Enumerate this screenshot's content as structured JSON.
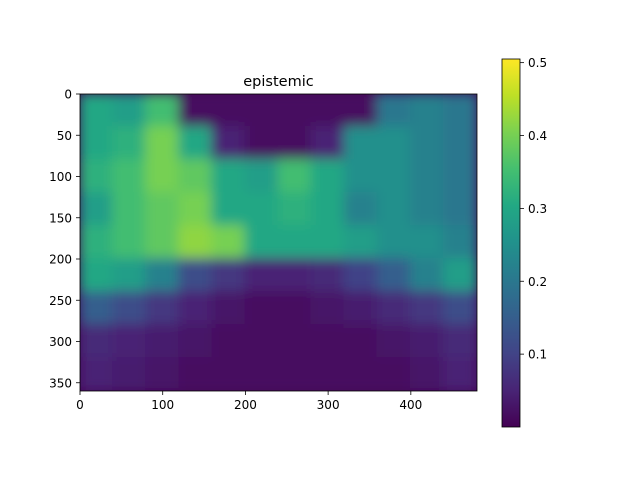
{
  "chart_data": {
    "type": "heatmap",
    "title": "epistemic",
    "xlabel": "",
    "ylabel": "",
    "xlim": [
      0,
      480
    ],
    "ylim": [
      360,
      0
    ],
    "x_ticks": [
      0,
      100,
      200,
      300,
      400
    ],
    "y_ticks": [
      0,
      50,
      100,
      150,
      200,
      250,
      300,
      350
    ],
    "x_tick_labels": [
      "0",
      "100",
      "200",
      "300",
      "400"
    ],
    "y_tick_labels": [
      "0",
      "50",
      "100",
      "150",
      "200",
      "250",
      "300",
      "350"
    ],
    "colormap": "viridis",
    "colorbar": {
      "min": 0.0,
      "max": 0.505,
      "ticks": [
        0.1,
        0.2,
        0.3,
        0.4,
        0.5
      ],
      "tick_labels": [
        "0.1",
        "0.2",
        "0.3",
        "0.4",
        "0.5"
      ]
    },
    "grid": false,
    "approx_grid": {
      "note_values": "coarse 12x9 estimate of pixel intensity (rows top→bottom, cols left→right)",
      "values": [
        [
          0.3,
          0.28,
          0.35,
          0.02,
          0.02,
          0.02,
          0.02,
          0.02,
          0.02,
          0.2,
          0.22,
          0.2
        ],
        [
          0.3,
          0.32,
          0.4,
          0.3,
          0.05,
          0.02,
          0.02,
          0.05,
          0.25,
          0.25,
          0.22,
          0.2
        ],
        [
          0.32,
          0.35,
          0.4,
          0.38,
          0.3,
          0.28,
          0.35,
          0.3,
          0.25,
          0.25,
          0.22,
          0.2
        ],
        [
          0.28,
          0.35,
          0.38,
          0.4,
          0.3,
          0.3,
          0.32,
          0.3,
          0.22,
          0.25,
          0.22,
          0.2
        ],
        [
          0.32,
          0.35,
          0.38,
          0.42,
          0.4,
          0.3,
          0.3,
          0.3,
          0.28,
          0.25,
          0.25,
          0.22
        ],
        [
          0.3,
          0.28,
          0.22,
          0.12,
          0.08,
          0.05,
          0.05,
          0.06,
          0.1,
          0.15,
          0.22,
          0.28
        ],
        [
          0.15,
          0.12,
          0.08,
          0.05,
          0.03,
          0.02,
          0.02,
          0.03,
          0.04,
          0.06,
          0.08,
          0.12
        ],
        [
          0.06,
          0.05,
          0.04,
          0.03,
          0.02,
          0.02,
          0.02,
          0.02,
          0.02,
          0.03,
          0.04,
          0.06
        ],
        [
          0.05,
          0.04,
          0.03,
          0.02,
          0.02,
          0.02,
          0.02,
          0.02,
          0.02,
          0.02,
          0.03,
          0.05
        ]
      ]
    }
  }
}
